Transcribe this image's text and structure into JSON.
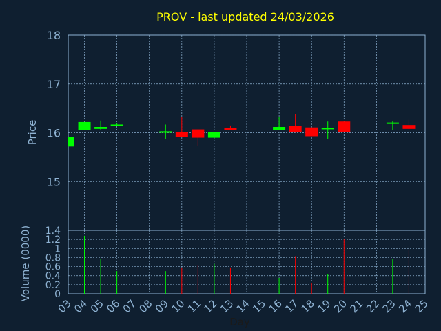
{
  "chart_data": {
    "type": "candlestick",
    "title": "PROV - last updated 24/03/2026",
    "xlabel": "Day",
    "colors": {
      "background": "#0f1f30",
      "grid": "#8fb3d3",
      "axis_text": "#8fb3d3",
      "title": "#ffff00",
      "up": "#00ff00",
      "down": "#ff0000"
    },
    "x_ticks": [
      "03",
      "04",
      "05",
      "06",
      "07",
      "08",
      "09",
      "10",
      "11",
      "12",
      "13",
      "14",
      "15",
      "16",
      "17",
      "18",
      "19",
      "20",
      "21",
      "22",
      "23",
      "24",
      "25"
    ],
    "price_panel": {
      "ylabel": "Price",
      "ylim": [
        14.0,
        18.0
      ],
      "y_ticks": [
        15,
        16,
        17,
        18
      ],
      "grid": true
    },
    "volume_panel": {
      "ylabel": "Volume (0000)",
      "ylim": [
        0,
        1.4
      ],
      "y_ticks": [
        0,
        0.2,
        0.4,
        0.6,
        0.8,
        1,
        1.2,
        1.4
      ],
      "grid": true
    },
    "candles": [
      {
        "day": 3,
        "open": 15.72,
        "high": 15.92,
        "low": 15.72,
        "close": 15.92,
        "volume": 0.0
      },
      {
        "day": 4,
        "open": 16.05,
        "high": 16.22,
        "low": 16.05,
        "close": 16.22,
        "volume": 1.28
      },
      {
        "day": 5,
        "open": 16.08,
        "high": 16.25,
        "low": 16.06,
        "close": 16.12,
        "volume": 0.76
      },
      {
        "day": 6,
        "open": 16.15,
        "high": 16.2,
        "low": 16.14,
        "close": 16.17,
        "volume": 0.5
      },
      {
        "day": 9,
        "open": 16.0,
        "high": 16.17,
        "low": 15.88,
        "close": 16.03,
        "volume": 0.5
      },
      {
        "day": 10,
        "open": 16.02,
        "high": 16.33,
        "low": 15.92,
        "close": 15.92,
        "volume": 0.58
      },
      {
        "day": 11,
        "open": 16.07,
        "high": 16.07,
        "low": 15.74,
        "close": 15.9,
        "volume": 0.63
      },
      {
        "day": 12,
        "open": 15.9,
        "high": 16.02,
        "low": 15.9,
        "close": 16.01,
        "volume": 0.66
      },
      {
        "day": 13,
        "open": 16.1,
        "high": 16.15,
        "low": 16.05,
        "close": 16.05,
        "volume": 0.58
      },
      {
        "day": 16,
        "open": 16.06,
        "high": 16.33,
        "low": 16.06,
        "close": 16.12,
        "volume": 0.35
      },
      {
        "day": 17,
        "open": 16.14,
        "high": 16.38,
        "low": 16.0,
        "close": 16.01,
        "volume": 0.83
      },
      {
        "day": 18,
        "open": 16.11,
        "high": 16.11,
        "low": 15.93,
        "close": 15.93,
        "volume": 0.24
      },
      {
        "day": 19,
        "open": 16.08,
        "high": 16.23,
        "low": 15.88,
        "close": 16.1,
        "volume": 0.43
      },
      {
        "day": 20,
        "open": 16.23,
        "high": 16.23,
        "low": 16.02,
        "close": 16.02,
        "volume": 1.2
      },
      {
        "day": 23,
        "open": 16.19,
        "high": 16.24,
        "low": 16.06,
        "close": 16.21,
        "volume": 0.76
      },
      {
        "day": 24,
        "open": 16.16,
        "high": 16.27,
        "low": 16.08,
        "close": 16.08,
        "volume": 0.98
      }
    ]
  }
}
